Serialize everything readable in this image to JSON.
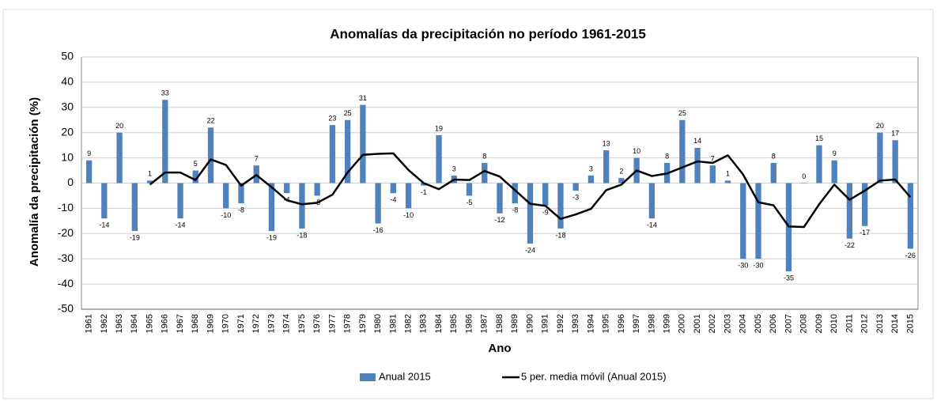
{
  "chart_data": {
    "type": "bar_line",
    "title": "Anomalías da precipitación no período 1961-2015",
    "x_label": "Ano",
    "y_label": "Anomalía da precipitación (%)",
    "categories": [
      "1961",
      "1962",
      "1963",
      "1964",
      "1965",
      "1966",
      "1967",
      "1968",
      "1969",
      "1970",
      "1971",
      "1972",
      "1973",
      "1974",
      "1975",
      "1976",
      "1977",
      "1978",
      "1979",
      "1980",
      "1981",
      "1982",
      "1983",
      "1984",
      "1985",
      "1986",
      "1987",
      "1988",
      "1989",
      "1990",
      "1991",
      "1992",
      "1993",
      "1994",
      "1995",
      "1996",
      "1997",
      "1998",
      "1999",
      "2000",
      "2001",
      "2002",
      "2003",
      "2004",
      "2005",
      "2006",
      "2007",
      "2008",
      "2009",
      "2010",
      "2011",
      "2012",
      "2013",
      "2014",
      "2015"
    ],
    "series": [
      {
        "name": "Anual 2015",
        "type": "bar",
        "color": "#4f81bd",
        "values": [
          9,
          -14,
          20,
          -19,
          1,
          33,
          -14,
          5,
          22,
          -10,
          -8,
          7,
          -19,
          -4,
          -18,
          -5,
          23,
          25,
          31,
          -16,
          -4,
          -10,
          -1,
          19,
          3,
          -5,
          8,
          -12,
          -8,
          -24,
          -9,
          -18,
          -3,
          3,
          13,
          2,
          10,
          -14,
          8,
          25,
          14,
          7,
          1,
          -30,
          -30,
          8,
          -35,
          0,
          15,
          9,
          -22,
          -17,
          20,
          17,
          -26
        ]
      },
      {
        "name": "5 per. media móvil (Anual 2015)",
        "type": "line",
        "color": "#000000",
        "values": [
          null,
          null,
          null,
          null,
          -0.6,
          4.2,
          4.2,
          1.2,
          9.4,
          7.2,
          -1,
          3.2,
          -1.6,
          -6.8,
          -8.4,
          -7.8,
          -4.6,
          4.2,
          11.2,
          11.6,
          11.8,
          5.2,
          0,
          -2.4,
          1.4,
          1.2,
          4.8,
          2.6,
          -2.8,
          -8.2,
          -9,
          -14.2,
          -12.4,
          -10.2,
          -2.8,
          -0.6,
          5,
          2.8,
          3.8,
          6.2,
          8.6,
          8,
          11,
          3.4,
          -7.6,
          -8.8,
          -17.2,
          -17.4,
          -8.4,
          -0.6,
          -6.6,
          -3,
          1,
          1.4,
          -5.6
        ]
      }
    ],
    "ylim": [
      -50,
      50
    ],
    "yticks": [
      -50,
      -40,
      -30,
      -20,
      -10,
      0,
      10,
      20,
      30,
      40,
      50
    ],
    "grid": true,
    "legend": "bottom"
  }
}
